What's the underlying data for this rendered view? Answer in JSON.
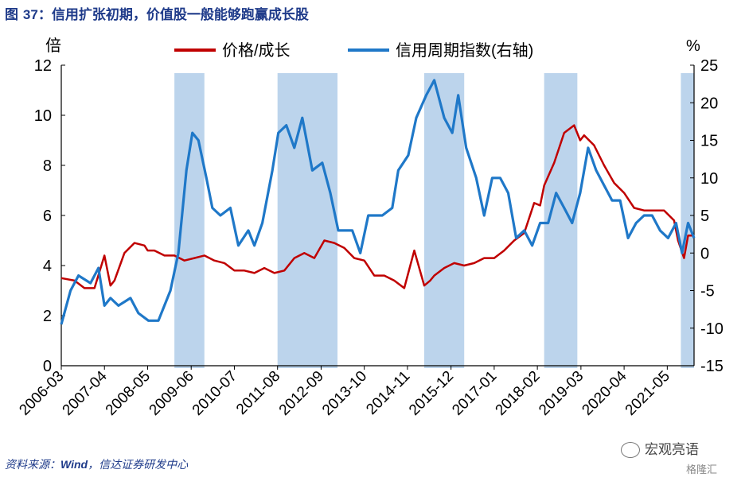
{
  "figure": {
    "title_prefix": "图",
    "title_number": "37",
    "title_text": "：信用扩张初期，价值股一般能够跑赢成长股",
    "source_label": "资料来源：",
    "source_name": "Wind",
    "source_rest": "，信达证券研发中心",
    "watermark": "宏观亮语",
    "watermark2": "格隆汇"
  },
  "chart_data": {
    "type": "line",
    "left_unit": "倍",
    "right_unit": "%",
    "left_axis": {
      "min": 0,
      "max": 12,
      "ticks": [
        0,
        2,
        4,
        6,
        8,
        10,
        12
      ]
    },
    "right_axis": {
      "min": -15,
      "max": 25,
      "ticks": [
        -15,
        -10,
        -5,
        0,
        5,
        10,
        15,
        20,
        25
      ]
    },
    "x_range": [
      2006.17,
      2022.0
    ],
    "x_tick_labels": [
      "2006-03",
      "2007-04",
      "2008-05",
      "2009-06",
      "2010-07",
      "2011-08",
      "2012-09",
      "2013-10",
      "2014-11",
      "2015-12",
      "2017-01",
      "2018-02",
      "2019-03",
      "2020-04",
      "2021-05"
    ],
    "x_ticks": [
      2006.17,
      2007.25,
      2008.33,
      2009.42,
      2010.5,
      2011.58,
      2012.67,
      2013.75,
      2014.83,
      2015.92,
      2017.0,
      2018.08,
      2019.17,
      2020.25,
      2021.33
    ],
    "shaded_periods": [
      [
        2009.0,
        2009.75
      ],
      [
        2011.58,
        2013.08
      ],
      [
        2015.25,
        2016.25
      ],
      [
        2018.25,
        2019.08
      ],
      [
        2021.67,
        2022.0
      ]
    ],
    "series": [
      {
        "name": "价格/成长",
        "axis": "left",
        "color": "#c00000",
        "x": [
          2006.17,
          2006.5,
          2006.75,
          2007.0,
          2007.25,
          2007.4,
          2007.5,
          2007.75,
          2008.0,
          2008.25,
          2008.33,
          2008.5,
          2008.75,
          2009.0,
          2009.25,
          2009.5,
          2009.75,
          2010.0,
          2010.25,
          2010.5,
          2010.75,
          2011.0,
          2011.25,
          2011.5,
          2011.75,
          2012.0,
          2012.25,
          2012.5,
          2012.75,
          2013.0,
          2013.25,
          2013.5,
          2013.75,
          2014.0,
          2014.25,
          2014.5,
          2014.75,
          2015.0,
          2015.25,
          2015.4,
          2015.5,
          2015.75,
          2016.0,
          2016.25,
          2016.5,
          2016.75,
          2017.0,
          2017.25,
          2017.5,
          2017.75,
          2018.0,
          2018.15,
          2018.25,
          2018.5,
          2018.75,
          2019.0,
          2019.15,
          2019.25,
          2019.5,
          2019.75,
          2020.0,
          2020.25,
          2020.5,
          2020.75,
          2021.0,
          2021.25,
          2021.5,
          2021.6,
          2021.75,
          2021.85,
          2022.0
        ],
        "values": [
          3.5,
          3.4,
          3.1,
          3.1,
          4.4,
          3.2,
          3.4,
          4.5,
          4.9,
          4.8,
          4.6,
          4.6,
          4.4,
          4.4,
          4.2,
          4.3,
          4.4,
          4.2,
          4.1,
          3.8,
          3.8,
          3.7,
          3.9,
          3.7,
          3.8,
          4.3,
          4.5,
          4.3,
          5.0,
          4.9,
          4.7,
          4.3,
          4.2,
          3.6,
          3.6,
          3.4,
          3.1,
          4.6,
          3.2,
          3.4,
          3.6,
          3.9,
          4.1,
          4.0,
          4.1,
          4.3,
          4.3,
          4.6,
          5.0,
          5.3,
          6.5,
          6.4,
          7.2,
          8.1,
          9.3,
          9.6,
          9.0,
          9.2,
          8.8,
          8.0,
          7.3,
          6.9,
          6.3,
          6.2,
          6.2,
          6.2,
          5.8,
          5.0,
          4.3,
          5.2,
          5.2
        ]
      },
      {
        "name": "信用周期指数(右轴)",
        "axis": "right",
        "color": "#1f78c8",
        "x": [
          2006.17,
          2006.4,
          2006.6,
          2006.9,
          2007.1,
          2007.25,
          2007.4,
          2007.6,
          2007.9,
          2008.1,
          2008.35,
          2008.6,
          2008.9,
          2009.1,
          2009.3,
          2009.45,
          2009.6,
          2009.8,
          2009.95,
          2010.15,
          2010.4,
          2010.6,
          2010.85,
          2011.0,
          2011.2,
          2011.45,
          2011.6,
          2011.8,
          2012.0,
          2012.2,
          2012.45,
          2012.7,
          2012.9,
          2013.1,
          2013.25,
          2013.45,
          2013.65,
          2013.85,
          2014.0,
          2014.2,
          2014.45,
          2014.6,
          2014.85,
          2015.05,
          2015.3,
          2015.5,
          2015.75,
          2015.95,
          2016.1,
          2016.3,
          2016.55,
          2016.75,
          2016.95,
          2017.15,
          2017.35,
          2017.55,
          2017.75,
          2017.95,
          2018.15,
          2018.35,
          2018.55,
          2018.75,
          2018.95,
          2019.15,
          2019.35,
          2019.55,
          2019.75,
          2019.95,
          2020.15,
          2020.35,
          2020.55,
          2020.75,
          2020.95,
          2021.15,
          2021.35,
          2021.55,
          2021.7,
          2021.85,
          2022.0
        ],
        "values": [
          -9.5,
          -5,
          -3,
          -4,
          -2,
          -7,
          -6,
          -7,
          -6,
          -8,
          -9,
          -9,
          -5,
          0,
          11,
          16,
          15,
          10,
          6,
          5,
          6,
          1,
          3,
          1,
          4,
          11,
          16,
          17,
          14,
          18,
          11,
          12,
          8,
          3,
          3,
          3,
          0,
          5,
          5,
          5,
          6,
          11,
          13,
          18,
          21,
          23,
          18,
          16,
          21,
          14,
          10,
          5,
          10,
          10,
          8,
          2,
          3,
          1,
          4,
          4,
          8,
          6,
          4,
          8,
          14,
          11,
          9,
          7,
          7,
          2,
          4,
          5,
          5,
          3,
          2,
          4,
          0,
          4,
          2
        ]
      }
    ]
  }
}
